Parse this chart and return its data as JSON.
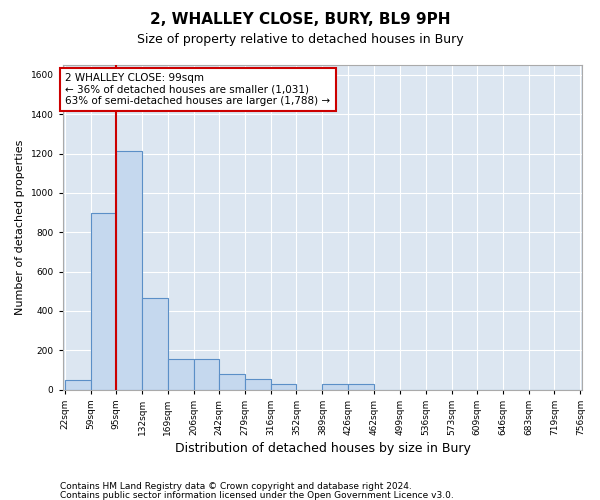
{
  "title": "2, WHALLEY CLOSE, BURY, BL9 9PH",
  "subtitle": "Size of property relative to detached houses in Bury",
  "xlabel": "Distribution of detached houses by size in Bury",
  "ylabel": "Number of detached properties",
  "footer_line1": "Contains HM Land Registry data © Crown copyright and database right 2024.",
  "footer_line2": "Contains public sector information licensed under the Open Government Licence v3.0.",
  "bar_edges": [
    22,
    59,
    95,
    132,
    169,
    206,
    242,
    279,
    316,
    352,
    389,
    426,
    462,
    499,
    536,
    573,
    609,
    646,
    683,
    719,
    756
  ],
  "bar_heights": [
    50,
    900,
    1215,
    465,
    155,
    155,
    80,
    55,
    30,
    0,
    30,
    30,
    0,
    0,
    0,
    0,
    0,
    0,
    0,
    0
  ],
  "bar_color": "#c5d8ee",
  "bar_edge_color": "#5b8fc7",
  "background_color": "#dce6f1",
  "vline_x": 95,
  "vline_color": "#cc0000",
  "annotation_text": "2 WHALLEY CLOSE: 99sqm\n← 36% of detached houses are smaller (1,031)\n63% of semi-detached houses are larger (1,788) →",
  "annotation_box_facecolor": "#ffffff",
  "annotation_border_color": "#cc0000",
  "ylim": [
    0,
    1650
  ],
  "yticks": [
    0,
    200,
    400,
    600,
    800,
    1000,
    1200,
    1400,
    1600
  ],
  "tick_labels": [
    "22sqm",
    "59sqm",
    "95sqm",
    "132sqm",
    "169sqm",
    "206sqm",
    "242sqm",
    "279sqm",
    "316sqm",
    "352sqm",
    "389sqm",
    "426sqm",
    "462sqm",
    "499sqm",
    "536sqm",
    "573sqm",
    "609sqm",
    "646sqm",
    "683sqm",
    "719sqm",
    "756sqm"
  ],
  "title_fontsize": 11,
  "subtitle_fontsize": 9,
  "ylabel_fontsize": 8,
  "xlabel_fontsize": 9,
  "tick_fontsize": 6.5,
  "footer_fontsize": 6.5,
  "annotation_fontsize": 7.5
}
